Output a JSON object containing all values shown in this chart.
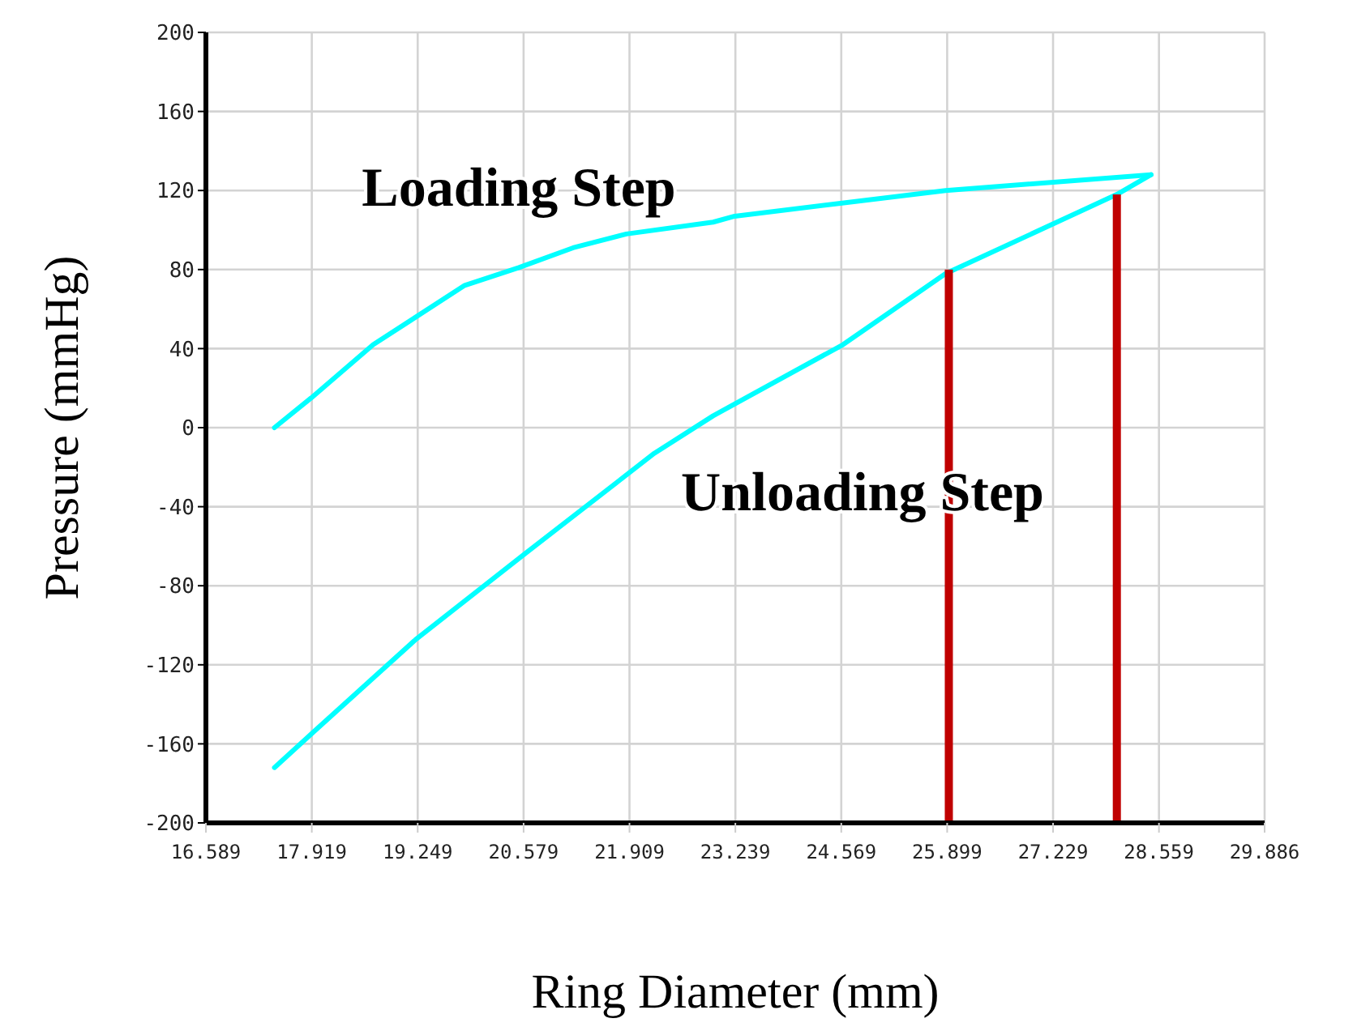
{
  "chart_data": {
    "type": "line",
    "xlabel": "Ring Diameter (mm)",
    "ylabel": "Pressure (mmHg)",
    "xlim": [
      16.589,
      29.886
    ],
    "xticks": [
      16.589,
      17.919,
      19.249,
      20.579,
      21.909,
      23.239,
      24.569,
      25.899,
      27.229,
      28.559,
      29.886
    ],
    "ylim": [
      -200,
      200
    ],
    "yticks": [
      -200,
      -160,
      -120,
      -80,
      -40,
      0,
      40,
      80,
      120,
      160,
      200
    ],
    "grid": true,
    "series": [
      {
        "color": "#00ffff",
        "x": [
          17.45,
          17.91,
          18.69,
          19.84,
          20.52,
          21.2,
          21.87,
          22.96,
          23.23,
          25.88,
          28.46
        ],
        "values": [
          0,
          15,
          42,
          72,
          81,
          91,
          98,
          104,
          107,
          120,
          128
        ]
      },
      {
        "color": "#00ffff",
        "x": [
          28.46,
          28.03,
          25.88,
          24.59,
          22.96,
          22.22,
          20.59,
          19.23,
          17.94,
          17.45
        ],
        "values": [
          128,
          118,
          78,
          42,
          6,
          -13,
          -64,
          -107,
          -154,
          -172
        ]
      },
      {
        "type": "bar",
        "color": "#c00000",
        "x": [
          25.92,
          28.03
        ],
        "base": [
          -200,
          -200
        ],
        "values": [
          280,
          318
        ]
      }
    ],
    "annotations": [
      "Loading Step",
      "Unloading Step"
    ]
  }
}
